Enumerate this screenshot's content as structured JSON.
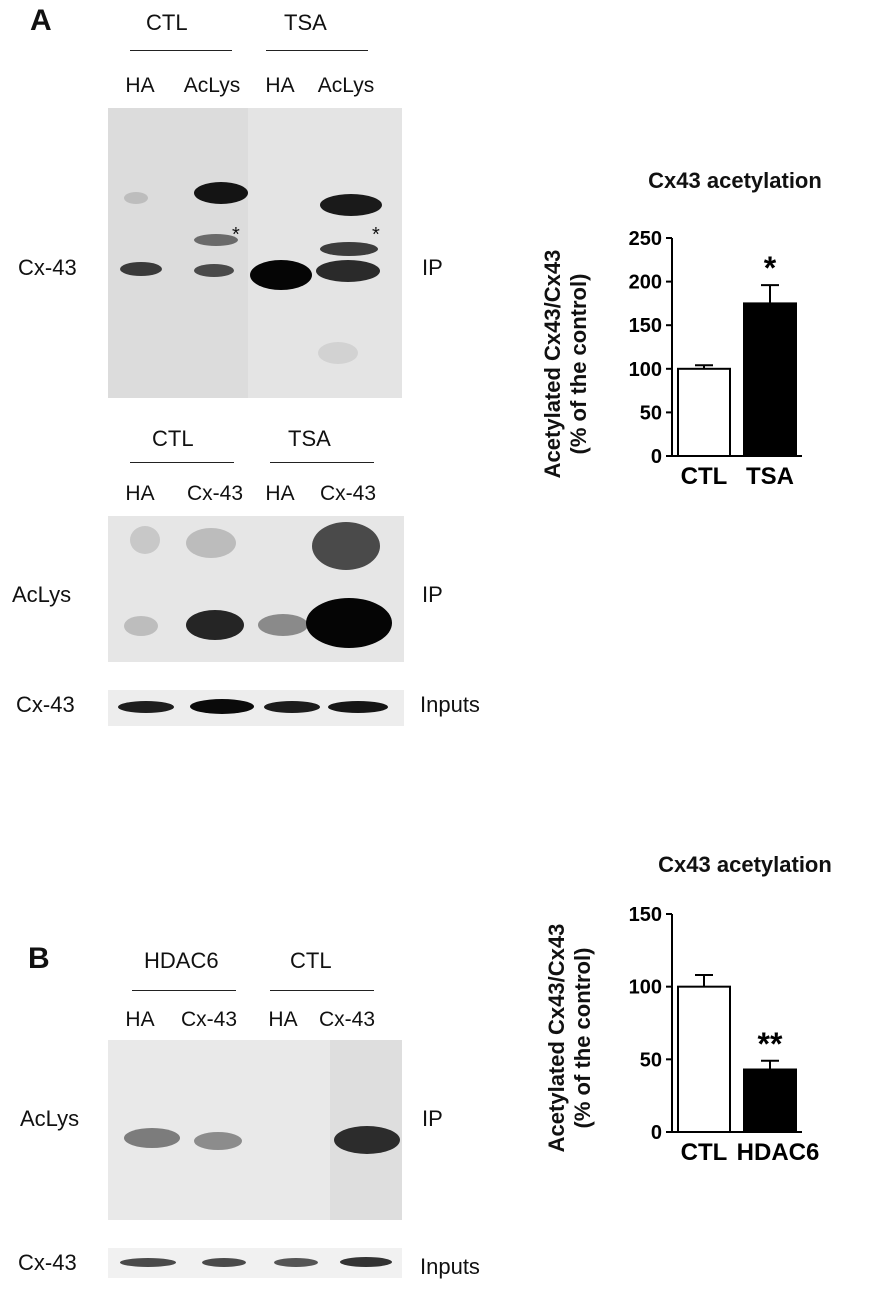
{
  "panel_a": {
    "letter": "A",
    "ip_blot": {
      "group_labels": [
        "CTL",
        "TSA"
      ],
      "lane_labels": [
        "HA",
        "AcLys",
        "HA",
        "AcLys"
      ],
      "row_label": "Cx-43",
      "side_label": "IP",
      "asterisks": [
        "*",
        "*"
      ]
    },
    "reverse_blot": {
      "group_labels": [
        "CTL",
        "TSA"
      ],
      "lane_labels": [
        "HA",
        "Cx-43",
        "HA",
        "Cx-43"
      ],
      "row_label": "AcLys",
      "side_label": "IP",
      "input_row_label": "Cx-43",
      "input_side_label": "Inputs"
    }
  },
  "panel_b": {
    "letter": "B",
    "blot": {
      "group_labels": [
        "HDAC6",
        "CTL"
      ],
      "lane_labels": [
        "HA",
        "Cx-43",
        "HA",
        "Cx-43"
      ],
      "row_label": "AcLys",
      "side_label": "IP",
      "input_row_label": "Cx-43",
      "input_side_label": "Inputs"
    }
  },
  "chart_data": [
    {
      "type": "bar",
      "title": "Cx43 acetylation",
      "ylabel": "Acetylated Cx43/Cx43",
      "ylabel2": "(% of the control)",
      "categories": [
        "CTL",
        "TSA"
      ],
      "values": [
        100,
        175
      ],
      "errors": [
        4,
        21
      ],
      "bar_colors": [
        "#ffffff",
        "#000000"
      ],
      "annotations": [
        "",
        "*"
      ],
      "ylim": [
        0,
        250
      ],
      "yticks": [
        0,
        50,
        100,
        150,
        200,
        250
      ]
    },
    {
      "type": "bar",
      "title": "Cx43 acetylation",
      "ylabel": "Acetylated Cx43/Cx43",
      "ylabel2": "(% of the control)",
      "categories": [
        "CTL",
        "HDAC6"
      ],
      "values": [
        100,
        43
      ],
      "errors": [
        8,
        6
      ],
      "bar_colors": [
        "#ffffff",
        "#000000"
      ],
      "annotations": [
        "",
        "**"
      ],
      "ylim": [
        0,
        150
      ],
      "yticks": [
        0,
        50,
        100,
        150
      ]
    }
  ]
}
